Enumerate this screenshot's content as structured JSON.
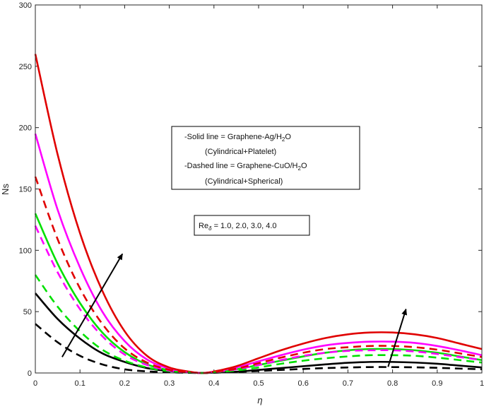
{
  "chart_data": {
    "type": "line",
    "xlabel": "η",
    "ylabel": "Ns",
    "xlim": [
      0,
      1
    ],
    "ylim": [
      0,
      300
    ],
    "xticks": [
      0,
      0.1,
      0.2,
      0.3,
      0.4,
      0.5,
      0.6,
      0.7,
      0.8,
      0.9,
      1
    ],
    "xtick_labels": [
      "0",
      "0.1",
      "0.2",
      "0.3",
      "0.4",
      "0.5",
      "0.6",
      "0.7",
      "0.8",
      "0.9",
      "1"
    ],
    "yticks": [
      0,
      50,
      100,
      150,
      200,
      250,
      300
    ],
    "ytick_labels": [
      "0",
      "50",
      "100",
      "150",
      "200",
      "250",
      "300"
    ],
    "x": [
      0,
      0.05,
      0.1,
      0.15,
      0.2,
      0.25,
      0.3,
      0.35,
      0.375,
      0.4,
      0.45,
      0.5,
      0.55,
      0.6,
      0.65,
      0.7,
      0.75,
      0.8,
      0.85,
      0.9,
      0.95,
      1
    ],
    "series": [
      {
        "style": "solid",
        "color": "#000000",
        "values": [
          65,
          44,
          28,
          16,
          9,
          4,
          1.5,
          0.3,
          0,
          0.3,
          1,
          2.5,
          4,
          5.5,
          7,
          8.3,
          9,
          9,
          8.5,
          7.5,
          6,
          4.5
        ]
      },
      {
        "style": "solid",
        "color": "#00e000",
        "values": [
          130,
          89,
          57,
          33,
          17,
          7,
          2.2,
          0.4,
          0,
          0.6,
          3,
          6.5,
          10,
          13.5,
          16.5,
          18.5,
          19.5,
          19.5,
          18.5,
          16.5,
          13.5,
          10.5
        ]
      },
      {
        "style": "solid",
        "color": "#ff00ff",
        "values": [
          195,
          133,
          86,
          50,
          26,
          11,
          3.5,
          0.6,
          0,
          1,
          4.5,
          9.5,
          14.5,
          19,
          22.5,
          24.5,
          25.5,
          25.5,
          24.5,
          22,
          18.5,
          14.5
        ]
      },
      {
        "style": "solid",
        "color": "#e00000",
        "values": [
          260,
          178,
          114,
          67,
          34,
          14,
          4.5,
          0.8,
          0,
          1.2,
          5.5,
          12,
          18.5,
          24,
          28.5,
          31.5,
          33,
          33,
          31.5,
          28.5,
          24,
          19.5
        ]
      },
      {
        "style": "dashed",
        "color": "#000000",
        "values": [
          40,
          25,
          14,
          7,
          3,
          1.3,
          0.5,
          0.1,
          0,
          0.2,
          0.8,
          1.6,
          2.5,
          3.3,
          4,
          4.5,
          4.8,
          4.8,
          4.6,
          4.2,
          3.6,
          3
        ]
      },
      {
        "style": "dashed",
        "color": "#00e000",
        "values": [
          80,
          54,
          34,
          19,
          10,
          4.5,
          1.5,
          0.3,
          0,
          0.5,
          2,
          4.5,
          7.5,
          10,
          12,
          13.5,
          14.5,
          14.5,
          14,
          12.5,
          10.5,
          8.5
        ]
      },
      {
        "style": "dashed",
        "color": "#ff00ff",
        "values": [
          120,
          82,
          52,
          30,
          15,
          6.5,
          2,
          0.4,
          0,
          0.7,
          3,
          6.5,
          10.5,
          14,
          16.5,
          18,
          18.5,
          18.5,
          17.5,
          15.5,
          13,
          10.5
        ]
      },
      {
        "style": "dashed",
        "color": "#e00000",
        "values": [
          160,
          109,
          69,
          40,
          20,
          8.5,
          2.6,
          0.5,
          0,
          0.8,
          3.5,
          8,
          12.5,
          16.5,
          19.5,
          21,
          22,
          22,
          21,
          19,
          16,
          13
        ]
      }
    ],
    "annotations": {
      "legend_box": {
        "line1_prefix": "-Solid line = Graphene-Ag/H",
        "line1_sub": "2",
        "line1_suffix": "O",
        "line2": "(Cylindrical+Platelet)",
        "line3_prefix": "-Dashed line = Graphene-CuO/H",
        "line3_sub": "2",
        "line3_suffix": "O",
        "line4": "(Cylindrical+Spherical)"
      },
      "param_box": {
        "prefix": "Re",
        "sub": "δ",
        "values": " = 1.0, 2.0, 3.0, 4.0"
      },
      "arrows": [
        {
          "from": [
            0.06,
            13
          ],
          "to": [
            0.195,
            97
          ]
        },
        {
          "from": [
            0.79,
            5
          ],
          "to": [
            0.83,
            52
          ]
        }
      ]
    }
  }
}
